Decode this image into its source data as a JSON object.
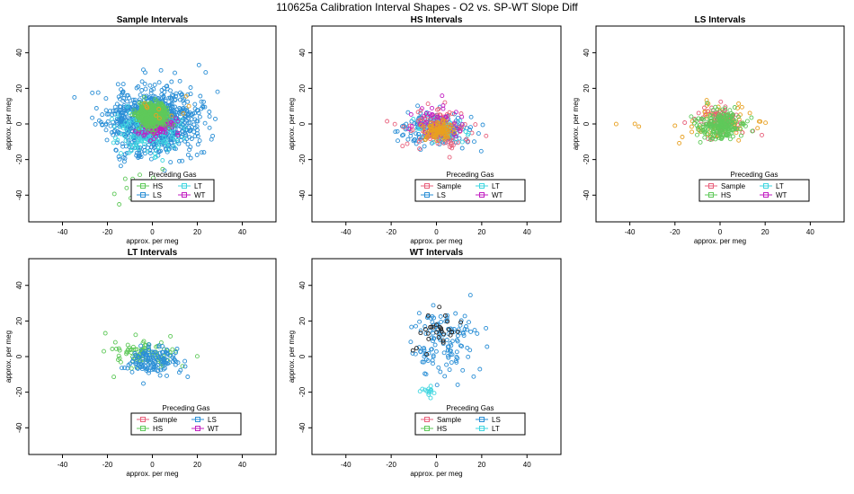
{
  "main_title": "110625a   Calibration Interval Shapes - O2 vs. SP-WT Slope Diff",
  "colors": {
    "Sample": "#e8617c",
    "HS": "#5fc95a",
    "LS": "#2b8fd6",
    "LT": "#3fd6e0",
    "WT": "#c21fc2",
    "Other": "#e8a020",
    "Black": "#222222"
  },
  "chart_data": [
    {
      "type": "scatter",
      "title": "Sample Intervals",
      "xlabel": "approx. per meg",
      "ylabel": "approx. per meg",
      "xlim": [
        -55,
        55
      ],
      "ylim": [
        -55,
        55
      ],
      "xticks": [
        "-40",
        "-20",
        "0",
        "20",
        "40"
      ],
      "yticks": [
        "-40",
        "-20",
        "0",
        "20",
        "40"
      ],
      "legend_title": "Preceding Gas",
      "legend": [
        "HS",
        "LT",
        "LS",
        "WT"
      ],
      "series": [
        {
          "name": "LS",
          "cx": 0,
          "cy": 2,
          "sx": 10,
          "sy": 9,
          "n": 900,
          "seed": 11
        },
        {
          "name": "LT",
          "cx": -2,
          "cy": -4,
          "sx": 7,
          "sy": 6,
          "n": 150,
          "seed": 12
        },
        {
          "name": "WT",
          "cx": 1,
          "cy": -1,
          "sx": 4,
          "sy": 3,
          "n": 120,
          "seed": 13
        },
        {
          "name": "HS",
          "cx": 0,
          "cy": 5,
          "sx": 3,
          "sy": 3,
          "n": 700,
          "seed": 14
        },
        {
          "name": "HS",
          "cx": -5,
          "cy": -35,
          "sx": 7,
          "sy": 8,
          "n": 14,
          "seed": 15
        },
        {
          "name": "Other",
          "cx": 5,
          "cy": 8,
          "sx": 6,
          "sy": 6,
          "n": 10,
          "seed": 16
        }
      ]
    },
    {
      "type": "scatter",
      "title": "HS Intervals",
      "xlabel": "approx. per meg",
      "ylabel": "approx. per meg",
      "xlim": [
        -55,
        55
      ],
      "ylim": [
        -55,
        55
      ],
      "xticks": [
        "-40",
        "-20",
        "0",
        "20",
        "40"
      ],
      "yticks": [
        "-40",
        "-20",
        "0",
        "20",
        "40"
      ],
      "legend_title": "Preceding Gas",
      "legend": [
        "Sample",
        "LT",
        "LS",
        "WT"
      ],
      "series": [
        {
          "name": "LS",
          "cx": 0,
          "cy": -3,
          "sx": 8,
          "sy": 5,
          "n": 180,
          "seed": 21
        },
        {
          "name": "Sample",
          "cx": 0,
          "cy": -2,
          "sx": 7,
          "sy": 5,
          "n": 130,
          "seed": 22
        },
        {
          "name": "LT",
          "cx": 1,
          "cy": -3,
          "sx": 6,
          "sy": 4,
          "n": 60,
          "seed": 23
        },
        {
          "name": "WT",
          "cx": 0,
          "cy": 0,
          "sx": 6,
          "sy": 5,
          "n": 60,
          "seed": 24
        },
        {
          "name": "Other",
          "cx": 1,
          "cy": -4,
          "sx": 3,
          "sy": 2.5,
          "n": 110,
          "seed": 25
        }
      ]
    },
    {
      "type": "scatter",
      "title": "LS Intervals",
      "xlabel": "approx. per meg",
      "ylabel": "approx. per meg",
      "xlim": [
        -55,
        55
      ],
      "ylim": [
        -55,
        55
      ],
      "xticks": [
        "-40",
        "-20",
        "0",
        "20",
        "40"
      ],
      "yticks": [
        "-40",
        "-20",
        "0",
        "20",
        "40"
      ],
      "legend_title": "Preceding Gas",
      "legend": [
        "Sample",
        "LT",
        "HS",
        "WT"
      ],
      "series": [
        {
          "name": "Other",
          "cx": 0,
          "cy": 1,
          "sx": 7,
          "sy": 5,
          "n": 80,
          "seed": 31
        },
        {
          "name": "Sample",
          "cx": 0,
          "cy": 3,
          "sx": 5,
          "sy": 4,
          "n": 70,
          "seed": 32
        },
        {
          "name": "HS",
          "cx": 0,
          "cy": -1,
          "sx": 5,
          "sy": 4,
          "n": 220,
          "seed": 33
        },
        {
          "name": "Other",
          "cx": -40,
          "cy": 0,
          "sx": 9,
          "sy": 1,
          "n": 3,
          "seed": 34
        }
      ]
    },
    {
      "type": "scatter",
      "title": "LT Intervals",
      "xlabel": "approx. per meg",
      "ylabel": "approx. per meg",
      "xlim": [
        -55,
        55
      ],
      "ylim": [
        -55,
        55
      ],
      "xticks": [
        "-40",
        "-20",
        "0",
        "20",
        "40"
      ],
      "yticks": [
        "-40",
        "-20",
        "0",
        "20",
        "40"
      ],
      "legend_title": "Preceding Gas",
      "legend": [
        "Sample",
        "LS",
        "HS",
        "WT"
      ],
      "series": [
        {
          "name": "HS",
          "cx": -3,
          "cy": 2,
          "sx": 7,
          "sy": 4,
          "n": 90,
          "seed": 41
        },
        {
          "name": "LS",
          "cx": 0,
          "cy": -2,
          "sx": 6,
          "sy": 4,
          "n": 140,
          "seed": 42
        }
      ]
    },
    {
      "type": "scatter",
      "title": "WT Intervals",
      "xlabel": "approx. per meg",
      "ylabel": "approx. per meg",
      "xlim": [
        -55,
        55
      ],
      "ylim": [
        -55,
        55
      ],
      "xticks": [
        "-40",
        "-20",
        "0",
        "20",
        "40"
      ],
      "yticks": [
        "-40",
        "-20",
        "0",
        "20",
        "40"
      ],
      "legend_title": "Preceding Gas",
      "legend": [
        "Sample",
        "LS",
        "HS",
        "LT"
      ],
      "series": [
        {
          "name": "LS",
          "cx": 2,
          "cy": 8,
          "sx": 7,
          "sy": 10,
          "n": 130,
          "seed": 51
        },
        {
          "name": "Black",
          "cx": 2,
          "cy": 15,
          "sx": 5,
          "sy": 7,
          "n": 30,
          "seed": 52
        },
        {
          "name": "LT",
          "cx": -4,
          "cy": -20,
          "sx": 1.5,
          "sy": 1.5,
          "n": 14,
          "seed": 53
        }
      ]
    }
  ]
}
